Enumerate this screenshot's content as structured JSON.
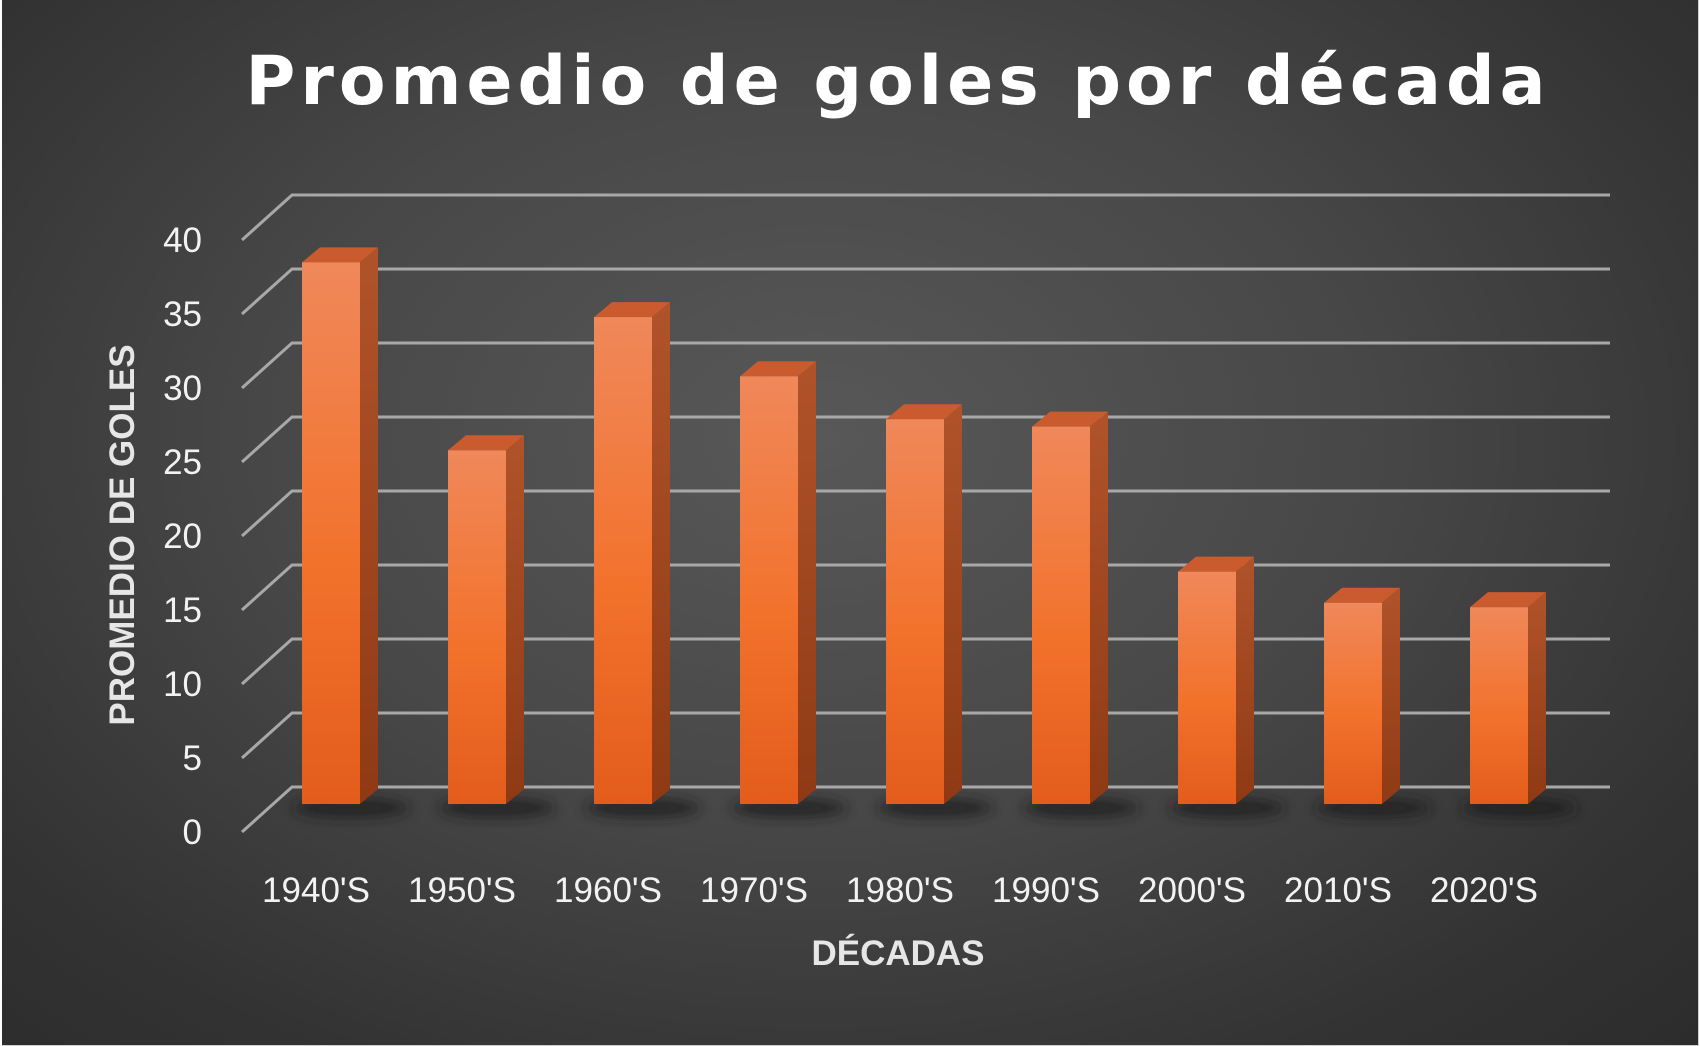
{
  "chart_data": {
    "type": "bar",
    "title": "Promedio de goles por década",
    "xlabel": "DÉCADAS",
    "ylabel": "PROMEDIO DE GOLES",
    "categories": [
      "1940'S",
      "1950'S",
      "1960'S",
      "1970'S",
      "1980'S",
      "1990'S",
      "2000'S",
      "2010'S",
      "2020'S"
    ],
    "values": [
      36.6,
      23.9,
      32.9,
      28.9,
      26.0,
      25.5,
      15.7,
      13.6,
      13.3
    ],
    "ylim": [
      0,
      40
    ],
    "yticks": [
      0,
      5,
      10,
      15,
      20,
      25,
      30,
      35,
      40
    ],
    "grid": true,
    "legend": "none",
    "three_d": true,
    "colors": {
      "bar_front_top": "#f0885a",
      "bar_front_bottom": "#e35c1c",
      "bar_side": "#a9481d",
      "bar_top": "#c95b2e",
      "gridline": "#a8a8a8",
      "text": "#ffffff"
    }
  }
}
